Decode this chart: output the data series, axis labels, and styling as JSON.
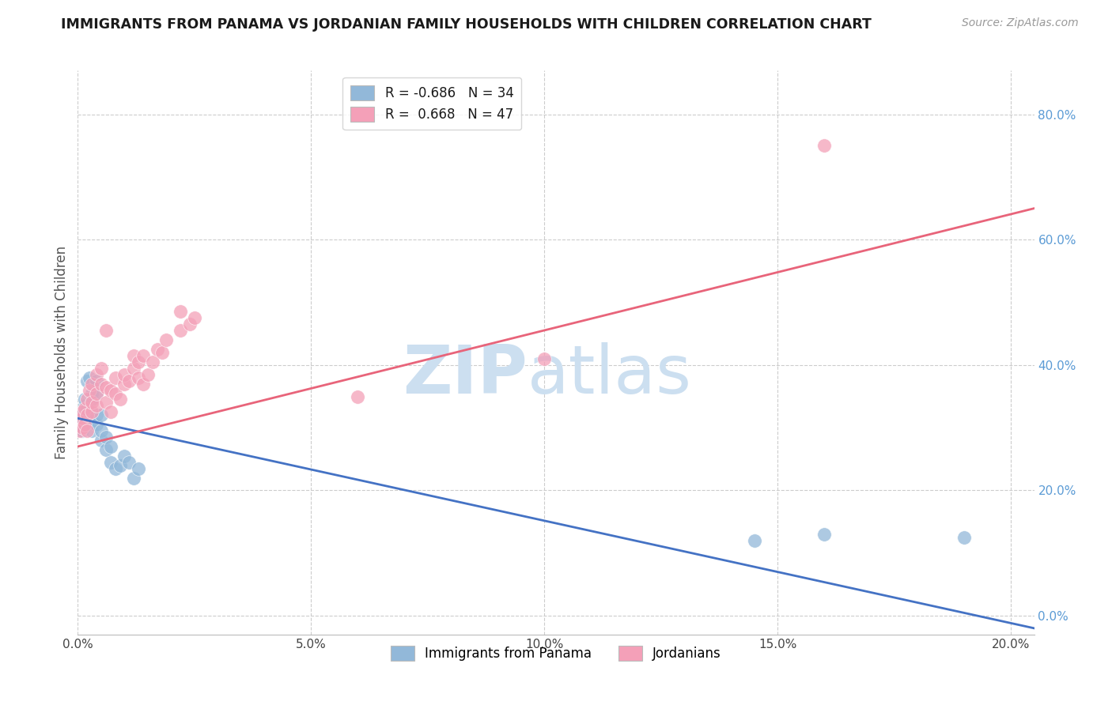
{
  "title": "IMMIGRANTS FROM PANAMA VS JORDANIAN FAMILY HOUSEHOLDS WITH CHILDREN CORRELATION CHART",
  "source": "Source: ZipAtlas.com",
  "ylabel": "Family Households with Children",
  "xlabel_blue": "Immigrants from Panama",
  "xlabel_pink": "Jordanians",
  "legend_blue_r": "R = -0.686",
  "legend_blue_n": "N = 34",
  "legend_pink_r": "R =  0.668",
  "legend_pink_n": "N = 47",
  "R_blue": -0.686,
  "R_pink": 0.668,
  "N_blue": 34,
  "N_pink": 47,
  "xmin": 0.0,
  "xmax": 0.205,
  "ymin": -0.03,
  "ymax": 0.87,
  "blue_color": "#92b8d9",
  "pink_color": "#f4a0b8",
  "blue_line_color": "#4472c4",
  "pink_line_color": "#e8647a",
  "title_color": "#1a1a1a",
  "axis_label_color": "#555555",
  "right_tick_color": "#5b9bd5",
  "watermark_color": "#ccdff0",
  "grid_color": "#cccccc",
  "blue_points_x": [
    0.0005,
    0.001,
    0.001,
    0.001,
    0.0015,
    0.0015,
    0.002,
    0.002,
    0.002,
    0.0025,
    0.003,
    0.003,
    0.003,
    0.003,
    0.004,
    0.004,
    0.004,
    0.004,
    0.005,
    0.005,
    0.005,
    0.006,
    0.006,
    0.007,
    0.007,
    0.008,
    0.009,
    0.01,
    0.011,
    0.012,
    0.013,
    0.145,
    0.16,
    0.19
  ],
  "blue_points_y": [
    0.305,
    0.295,
    0.31,
    0.32,
    0.335,
    0.345,
    0.315,
    0.33,
    0.375,
    0.38,
    0.295,
    0.31,
    0.345,
    0.355,
    0.305,
    0.32,
    0.355,
    0.375,
    0.28,
    0.295,
    0.32,
    0.265,
    0.285,
    0.245,
    0.27,
    0.235,
    0.24,
    0.255,
    0.245,
    0.22,
    0.235,
    0.12,
    0.13,
    0.125
  ],
  "pink_points_x": [
    0.0005,
    0.001,
    0.001,
    0.001,
    0.0015,
    0.0015,
    0.002,
    0.002,
    0.002,
    0.0025,
    0.003,
    0.003,
    0.003,
    0.004,
    0.004,
    0.004,
    0.005,
    0.005,
    0.006,
    0.006,
    0.006,
    0.007,
    0.007,
    0.008,
    0.008,
    0.009,
    0.01,
    0.01,
    0.011,
    0.012,
    0.012,
    0.013,
    0.013,
    0.014,
    0.014,
    0.015,
    0.016,
    0.017,
    0.018,
    0.019,
    0.022,
    0.022,
    0.024,
    0.025,
    0.06,
    0.1,
    0.16
  ],
  "pink_points_y": [
    0.295,
    0.3,
    0.315,
    0.325,
    0.305,
    0.33,
    0.295,
    0.32,
    0.345,
    0.36,
    0.325,
    0.34,
    0.37,
    0.335,
    0.355,
    0.385,
    0.37,
    0.395,
    0.34,
    0.365,
    0.455,
    0.325,
    0.36,
    0.355,
    0.38,
    0.345,
    0.37,
    0.385,
    0.375,
    0.395,
    0.415,
    0.38,
    0.405,
    0.37,
    0.415,
    0.385,
    0.405,
    0.425,
    0.42,
    0.44,
    0.455,
    0.485,
    0.465,
    0.475,
    0.35,
    0.41,
    0.75
  ],
  "blue_line_x0": 0.0,
  "blue_line_y0": 0.315,
  "blue_line_x1": 0.205,
  "blue_line_y1": -0.02,
  "pink_line_x0": 0.0,
  "pink_line_y0": 0.27,
  "pink_line_x1": 0.205,
  "pink_line_y1": 0.65
}
